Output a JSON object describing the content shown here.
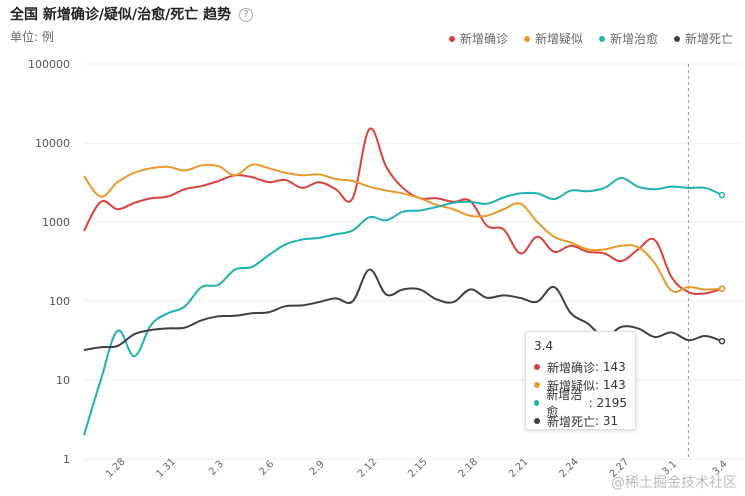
{
  "title": "全国 新增确诊/疑似/治愈/死亡 趋势",
  "help_glyph": "?",
  "unit_label": "单位: 例",
  "watermark": "@稀土掘金技术社区",
  "chart_data": {
    "type": "line",
    "yscale": "log",
    "ylim": [
      1,
      100000
    ],
    "yticks": [
      "1",
      "10",
      "100",
      "1000",
      "10000",
      "100000"
    ],
    "xlabels": [
      "1.28",
      "1.31",
      "2.3",
      "2.6",
      "2.9",
      "2.12",
      "2.15",
      "2.18",
      "2.21",
      "2.24",
      "2.27",
      "3.1",
      "3.4"
    ],
    "series": [
      {
        "name": "新增确诊",
        "color": "#d9413a",
        "values": [
          770,
          1800,
          1450,
          1750,
          2000,
          2100,
          2600,
          2850,
          3300,
          3900,
          3700,
          3200,
          3400,
          2700,
          3200,
          2600,
          2000,
          15000,
          5000,
          2700,
          2000,
          2000,
          1800,
          1850,
          900,
          800,
          400,
          650,
          420,
          500,
          420,
          400,
          320,
          450,
          590,
          200,
          130,
          125,
          143
        ]
      },
      {
        "name": "新增疑似",
        "color": "#e8992b",
        "values": [
          3800,
          2100,
          3200,
          4200,
          4800,
          5000,
          4500,
          5200,
          5100,
          3900,
          5300,
          4800,
          4200,
          3900,
          4000,
          3500,
          3300,
          2800,
          2500,
          2300,
          2000,
          1650,
          1450,
          1200,
          1200,
          1450,
          1700,
          1000,
          650,
          550,
          450,
          450,
          500,
          480,
          300,
          135,
          150,
          140,
          143
        ]
      },
      {
        "name": "新增治愈",
        "color": "#20b0b0",
        "values": [
          2,
          10,
          42,
          20,
          50,
          70,
          85,
          150,
          160,
          250,
          270,
          380,
          520,
          600,
          630,
          700,
          780,
          1150,
          1050,
          1350,
          1400,
          1550,
          1750,
          1800,
          1700,
          2050,
          2300,
          2300,
          1950,
          2500,
          2450,
          2700,
          3600,
          2800,
          2600,
          2800,
          2700,
          2700,
          2195
        ]
      },
      {
        "name": "新增死亡",
        "color": "#3e3e44",
        "values": [
          24,
          26,
          27,
          38,
          43,
          45,
          46,
          57,
          64,
          65,
          70,
          72,
          86,
          88,
          97,
          108,
          99,
          250,
          121,
          140,
          140,
          105,
          97,
          140,
          110,
          118,
          109,
          98,
          150,
          70,
          52,
          35,
          47,
          45,
          35,
          40,
          32,
          36,
          31
        ]
      }
    ],
    "tooltip": {
      "date": "3.4",
      "rows": [
        {
          "label": "新增确诊",
          "value": "143"
        },
        {
          "label": "新增疑似",
          "value": "143"
        },
        {
          "label": "新增治愈",
          "value": "2195"
        },
        {
          "label": "新增死亡",
          "value": "31"
        }
      ]
    }
  }
}
